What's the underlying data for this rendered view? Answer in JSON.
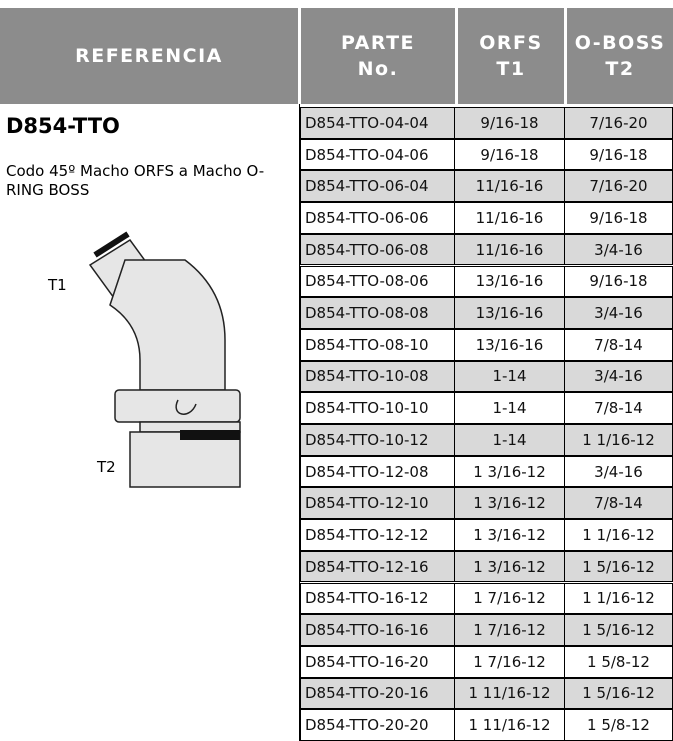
{
  "header": {
    "columns": [
      [
        "REFERENCIA"
      ],
      [
        "PARTE",
        "No."
      ],
      [
        "ORFS",
        "T1"
      ],
      [
        "O-BOSS",
        "T2"
      ]
    ]
  },
  "product": {
    "code": "D854-TTO",
    "description": "Codo 45º Macho ORFS a Macho O-RING BOSS",
    "port1": "T1",
    "port2": "T2"
  },
  "table": {
    "rows": [
      [
        "D854-TTO-04-04",
        "9/16-18",
        "7/16-20"
      ],
      [
        "D854-TTO-04-06",
        "9/16-18",
        "9/16-18"
      ],
      [
        "D854-TTO-06-04",
        "11/16-16",
        "7/16-20"
      ],
      [
        "D854-TTO-06-06",
        "11/16-16",
        "9/16-18"
      ],
      [
        "D854-TTO-06-08",
        "11/16-16",
        "3/4-16"
      ],
      [
        "D854-TTO-08-06",
        "13/16-16",
        "9/16-18"
      ],
      [
        "D854-TTO-08-08",
        "13/16-16",
        "3/4-16"
      ],
      [
        "D854-TTO-08-10",
        "13/16-16",
        "7/8-14"
      ],
      [
        "D854-TTO-10-08",
        "1-14",
        "3/4-16"
      ],
      [
        "D854-TTO-10-10",
        "1-14",
        "7/8-14"
      ],
      [
        "D854-TTO-10-12",
        "1-14",
        "1 1/16-12"
      ],
      [
        "D854-TTO-12-08",
        "1 3/16-12",
        "3/4-16"
      ],
      [
        "D854-TTO-12-10",
        "1 3/16-12",
        "7/8-14"
      ],
      [
        "D854-TTO-12-12",
        "1 3/16-12",
        "1 1/16-12"
      ],
      [
        "D854-TTO-12-16",
        "1 3/16-12",
        "1 5/16-12"
      ],
      [
        "D854-TTO-16-12",
        "1 7/16-12",
        "1 1/16-12"
      ],
      [
        "D854-TTO-16-16",
        "1 7/16-12",
        "1 5/16-12"
      ],
      [
        "D854-TTO-16-20",
        "1 7/16-12",
        "1 5/8-12"
      ],
      [
        "D854-TTO-20-16",
        "1 11/16-12",
        "1 5/16-12"
      ],
      [
        "D854-TTO-20-20",
        "1 11/16-12",
        "1 5/8-12"
      ]
    ]
  }
}
